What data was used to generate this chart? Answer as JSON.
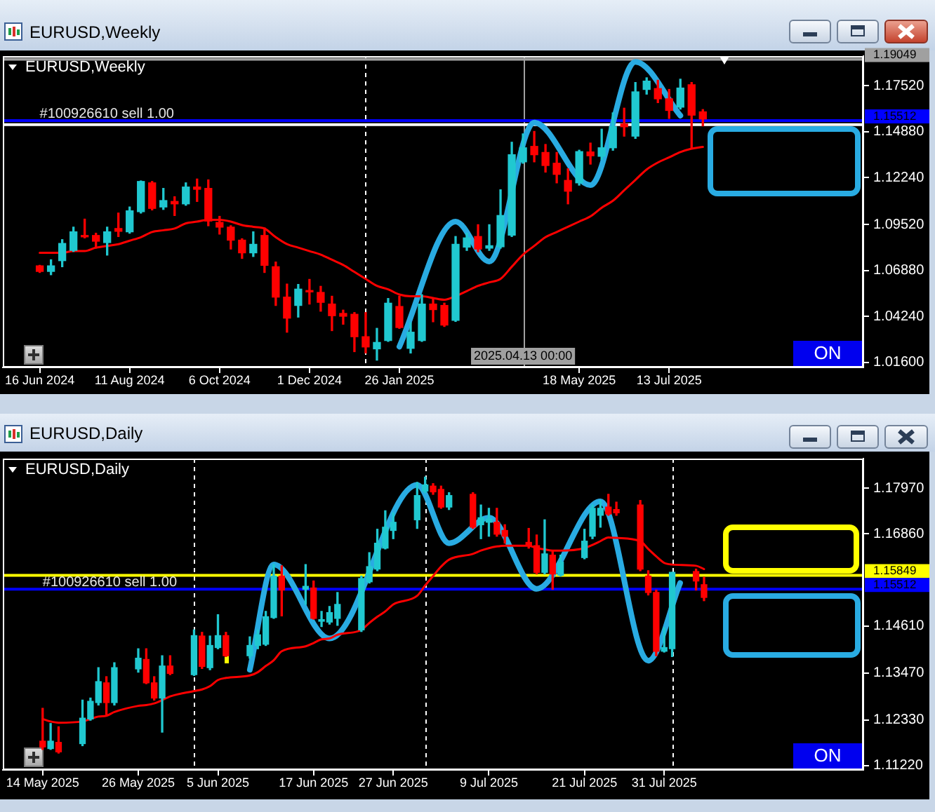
{
  "chart_data": [
    {
      "type": "candlestick",
      "title": "EURUSD,Weekly",
      "x": [
        "2024-06-16",
        "2024-06-23",
        "2024-06-30",
        "2024-07-07",
        "2024-07-14",
        "2024-07-21",
        "2024-07-28",
        "2024-08-04",
        "2024-08-11",
        "2024-08-18",
        "2024-08-25",
        "2024-09-01",
        "2024-09-08",
        "2024-09-15",
        "2024-09-22",
        "2024-09-29",
        "2024-10-06",
        "2024-10-13",
        "2024-10-20",
        "2024-10-27",
        "2024-11-03",
        "2024-11-10",
        "2024-11-17",
        "2024-11-24",
        "2024-12-01",
        "2024-12-08",
        "2024-12-15",
        "2024-12-22",
        "2024-12-29",
        "2025-01-05",
        "2025-01-12",
        "2025-01-19",
        "2025-01-26",
        "2025-02-02",
        "2025-02-09",
        "2025-02-16",
        "2025-02-23",
        "2025-03-02",
        "2025-03-09",
        "2025-03-16",
        "2025-03-23",
        "2025-03-30",
        "2025-04-06",
        "2025-04-13",
        "2025-04-20",
        "2025-04-27",
        "2025-05-04",
        "2025-05-11",
        "2025-05-18",
        "2025-05-25",
        "2025-06-01",
        "2025-06-08",
        "2025-06-15",
        "2025-06-22",
        "2025-06-29",
        "2025-07-06",
        "2025-07-13",
        "2025-07-20",
        "2025-07-27",
        "2025-08-03"
      ],
      "ohlc": [
        [
          1.0715,
          1.0718,
          1.0677,
          1.0683
        ],
        [
          1.0683,
          1.075,
          1.0664,
          1.0715
        ],
        [
          1.0745,
          1.0866,
          1.071,
          1.0844
        ],
        [
          1.0804,
          1.0938,
          1.0798,
          1.0911
        ],
        [
          1.0887,
          1.0984,
          1.0876,
          1.0882
        ],
        [
          1.089,
          1.0903,
          1.0817,
          1.0857
        ],
        [
          1.0849,
          1.0938,
          1.0777,
          1.0911
        ],
        [
          1.093,
          1.1019,
          1.0884,
          1.0914
        ],
        [
          1.0911,
          1.1054,
          1.0903,
          1.1032
        ],
        [
          1.1027,
          1.1204,
          1.1019,
          1.1201
        ],
        [
          1.1193,
          1.1201,
          1.1037,
          1.1046
        ],
        [
          1.1054,
          1.1161,
          1.104,
          1.1091
        ],
        [
          1.1086,
          1.1113,
          1.1005,
          1.1072
        ],
        [
          1.1072,
          1.1193,
          1.1064,
          1.1169
        ],
        [
          1.1169,
          1.1215,
          1.1086,
          1.1156
        ],
        [
          1.1161,
          1.121,
          1.0946,
          1.0973
        ],
        [
          1.0965,
          1.1,
          1.0898,
          1.0938
        ],
        [
          1.0938,
          1.0946,
          1.0812,
          1.0863
        ],
        [
          1.0863,
          1.0871,
          1.0758,
          1.079
        ],
        [
          1.079,
          1.0911,
          1.0769,
          1.0839
        ],
        [
          1.089,
          1.0933,
          1.0677,
          1.0718
        ],
        [
          1.071,
          1.0737,
          1.0487,
          1.0535
        ],
        [
          1.0535,
          1.061,
          1.0333,
          1.0414
        ],
        [
          1.0487,
          1.0608,
          1.042,
          1.0581
        ],
        [
          1.0573,
          1.0637,
          1.0495,
          1.0565
        ],
        [
          1.0562,
          1.0597,
          1.0454,
          1.0505
        ],
        [
          1.0495,
          1.054,
          1.0342,
          1.0428
        ],
        [
          1.0441,
          1.046,
          1.0379,
          1.0425
        ],
        [
          1.0436,
          1.0446,
          1.0221,
          1.0307
        ],
        [
          1.0307,
          1.0446,
          1.0213,
          1.0248
        ],
        [
          1.0237,
          1.0355,
          1.0172,
          1.0274
        ],
        [
          1.0285,
          1.0527,
          1.028,
          1.05
        ],
        [
          1.0481,
          1.054,
          1.0355,
          1.036
        ],
        [
          1.024,
          1.0387,
          1.0213,
          1.0333
        ],
        [
          1.0285,
          1.0549,
          1.028,
          1.0495
        ],
        [
          1.0495,
          1.0527,
          1.0393,
          1.0463
        ],
        [
          1.0487,
          1.05,
          1.0366,
          1.0374
        ],
        [
          1.0401,
          1.0884,
          1.0395,
          1.0839
        ],
        [
          1.0823,
          1.0903,
          1.0804,
          1.0876
        ],
        [
          1.0884,
          1.0952,
          1.0796,
          1.0812
        ],
        [
          1.0817,
          1.0952,
          1.0804,
          1.0831
        ],
        [
          1.0825,
          1.1153,
          1.0817,
          1.1005
        ],
        [
          1.0892,
          1.1427,
          1.0884,
          1.1355
        ],
        [
          1.1314,
          1.1475,
          1.1306,
          1.1395
        ],
        [
          1.1403,
          1.1489,
          1.1314,
          1.1355
        ],
        [
          1.1368,
          1.1414,
          1.1255,
          1.1293
        ],
        [
          1.1306,
          1.1368,
          1.1193,
          1.1242
        ],
        [
          1.1207,
          1.1274,
          1.1072,
          1.1145
        ],
        [
          1.1193,
          1.1381,
          1.118,
          1.1373
        ],
        [
          1.1371,
          1.1422,
          1.1301,
          1.1349
        ],
        [
          1.1346,
          1.1502,
          1.1328,
          1.1395
        ],
        [
          1.1395,
          1.1596,
          1.1381,
          1.1516
        ],
        [
          1.1532,
          1.1623,
          1.1462,
          1.1516
        ],
        [
          1.1462,
          1.1771,
          1.1449,
          1.1717
        ],
        [
          1.1731,
          1.1798,
          1.1704,
          1.1779
        ],
        [
          1.1736,
          1.1784,
          1.1655,
          1.1677
        ],
        [
          1.1677,
          1.1731,
          1.1564,
          1.161
        ],
        [
          1.1629,
          1.179,
          1.1618,
          1.1739
        ],
        [
          1.1758,
          1.1771,
          1.1395,
          1.1583
        ],
        [
          1.1602,
          1.1615,
          1.1521,
          1.1561
        ]
      ],
      "colors": [
        "#ff0000",
        "#20c8d0",
        "#20c8d0",
        "#20c8d0",
        "#ff0000",
        "#ff0000",
        "#20c8d0",
        "#ff0000",
        "#20c8d0",
        "#20c8d0",
        "#ff0000",
        "#20c8d0",
        "#ff0000",
        "#20c8d0",
        "#ff0000",
        "#ff0000",
        "#ff0000",
        "#ff0000",
        "#ff0000",
        "#20c8d0",
        "#ff0000",
        "#ff0000",
        "#ff0000",
        "#20c8d0",
        "#ff0000",
        "#ff0000",
        "#ff0000",
        "#ff0000",
        "#ff0000",
        "#ff0000",
        "#20c8d0",
        "#20c8d0",
        "#ff0000",
        "#20c8d0",
        "#20c8d0",
        "#ff0000",
        "#ff0000",
        "#20c8d0",
        "#20c8d0",
        "#ff0000",
        "#20c8d0",
        "#20c8d0",
        "#20c8d0",
        "#20c8d0",
        "#ff0000",
        "#ff0000",
        "#ff0000",
        "#ff0000",
        "#20c8d0",
        "#ff0000",
        "#20c8d0",
        "#20c8d0",
        "#ff0000",
        "#20c8d0",
        "#20c8d0",
        "#ff0000",
        "#ff0000",
        "#20c8d0",
        "#ff0000",
        "#ff0000"
      ],
      "series": [
        {
          "type": "line",
          "color": "#ff0000",
          "values": [
            1.079,
            1.079,
            1.079,
            1.08,
            1.08,
            1.082,
            1.083,
            1.084,
            1.086,
            1.088,
            1.091,
            1.092,
            1.093,
            1.096,
            1.097,
            1.098,
            1.098,
            1.097,
            1.095,
            1.094,
            1.093,
            1.088,
            1.084,
            1.082,
            1.08,
            1.078,
            1.075,
            1.072,
            1.068,
            1.064,
            1.06,
            1.058,
            1.055,
            1.054,
            1.054,
            1.053,
            1.052,
            1.054,
            1.057,
            1.06,
            1.062,
            1.064,
            1.071,
            1.078,
            1.083,
            1.088,
            1.091,
            1.094,
            1.097,
            1.1,
            1.105,
            1.109,
            1.115,
            1.121,
            1.127,
            1.131,
            1.134,
            1.137,
            1.139,
            1.14
          ]
        },
        {
          "type": "line",
          "color": "#29abe2",
          "x": [
            "2025-01-26",
            "2025-03-02",
            "2025-03-23",
            "2025-04-20",
            "2025-05-25",
            "2025-06-22",
            "2025-07-20"
          ],
          "values": [
            1.025,
            1.097,
            1.074,
            1.154,
            1.118,
            1.189,
            1.158
          ]
        }
      ],
      "xlim": [
        "2024-05-24",
        "2025-11-11"
      ],
      "ylim": [
        1.013,
        1.1923
      ],
      "yticks": [
        {
          "value": 1.016,
          "label": "1.01600"
        },
        {
          "value": 1.0424,
          "label": "1.04240"
        },
        {
          "value": 1.0688,
          "label": "1.06880"
        },
        {
          "value": 1.0952,
          "label": "1.09520"
        },
        {
          "value": 1.1224,
          "label": "1.12240"
        },
        {
          "value": 1.1488,
          "label": "1.14880"
        },
        {
          "value": 1.1752,
          "label": "1.17520"
        }
      ],
      "xticks": [
        {
          "value": "2024-06-16",
          "label": "16 Jun 2024"
        },
        {
          "value": "2024-08-11",
          "label": "11 Aug 2024"
        },
        {
          "value": "2024-10-06",
          "label": "6 Oct 2024"
        },
        {
          "value": "2024-12-01",
          "label": "1 Dec 2024"
        },
        {
          "value": "2025-01-26",
          "label": "26 Jan 2025"
        },
        {
          "value": "2025-05-18",
          "label": "18 May 2025"
        },
        {
          "value": "2025-07-13",
          "label": "13 Jul 2025"
        }
      ],
      "ref_lines": [
        {
          "axis": "x",
          "value": "2025-01-05",
          "color": "#ffffff",
          "line_style": "dashed"
        },
        {
          "axis": "x",
          "value": "2025-04-13",
          "label": "2025.04.13 00:00",
          "color": "#a0a0a0"
        },
        {
          "axis": "y",
          "value": 1.19049,
          "label": "1.19049",
          "color": "#a0a0a0"
        },
        {
          "axis": "y",
          "value": 1.15512,
          "label": "1.15512",
          "color": "#0000ff"
        },
        {
          "axis": "y",
          "value": 1.1528,
          "color": "#ffffff"
        }
      ],
      "annotations": [
        "ON",
        {
          "text": "#100926610 sell 1.00",
          "x": "2024-06-16",
          "y": 1.15512
        }
      ]
    },
    {
      "type": "candlestick",
      "title": "EURUSD,Daily",
      "x": [
        "2025-05-14",
        "2025-05-15",
        "2025-05-16",
        "2025-05-19",
        "2025-05-20",
        "2025-05-21",
        "2025-05-22",
        "2025-05-23",
        "2025-05-26",
        "2025-05-27",
        "2025-05-28",
        "2025-05-29",
        "2025-05-30",
        "2025-06-02",
        "2025-06-03",
        "2025-06-04",
        "2025-06-05",
        "2025-06-06",
        "2025-06-09",
        "2025-06-10",
        "2025-06-11",
        "2025-06-12",
        "2025-06-13",
        "2025-06-16",
        "2025-06-17",
        "2025-06-18",
        "2025-06-19",
        "2025-06-20",
        "2025-06-23",
        "2025-06-24",
        "2025-06-25",
        "2025-06-26",
        "2025-06-27",
        "2025-06-30",
        "2025-07-01",
        "2025-07-02",
        "2025-07-03",
        "2025-07-04",
        "2025-07-07",
        "2025-07-08",
        "2025-07-09",
        "2025-07-10",
        "2025-07-11",
        "2025-07-14",
        "2025-07-15",
        "2025-07-16",
        "2025-07-17",
        "2025-07-18",
        "2025-07-21",
        "2025-07-22",
        "2025-07-23",
        "2025-07-24",
        "2025-07-25",
        "2025-07-28",
        "2025-07-29",
        "2025-07-30",
        "2025-07-31",
        "2025-08-01",
        "2025-08-04",
        "2025-08-05"
      ],
      "ohlc": [
        [
          1.1181,
          1.1261,
          1.1161,
          1.1167
        ],
        [
          1.1163,
          1.1224,
          1.1161,
          1.1181
        ],
        [
          1.1178,
          1.1216,
          1.1152,
          1.1155
        ],
        [
          1.1175,
          1.1281,
          1.117,
          1.1237
        ],
        [
          1.1235,
          1.1286,
          1.1232,
          1.1278
        ],
        [
          1.1275,
          1.136,
          1.1269,
          1.1326
        ],
        [
          1.1323,
          1.1338,
          1.1246,
          1.1275
        ],
        [
          1.1275,
          1.1372,
          1.1269,
          1.136
        ],
        [
          1.1357,
          1.1406,
          1.1349,
          1.1383
        ],
        [
          1.138,
          1.1406,
          1.1321,
          1.1323
        ],
        [
          1.1323,
          1.1338,
          1.1281,
          1.1286
        ],
        [
          1.1286,
          1.1389,
          1.1203,
          1.1364
        ],
        [
          1.1364,
          1.1389,
          1.1343,
          1.1346
        ],
        [
          1.1343,
          1.1452,
          1.1341,
          1.1438
        ],
        [
          1.1437,
          1.1446,
          1.1358,
          1.1363
        ],
        [
          1.136,
          1.1437,
          1.1355,
          1.1414
        ],
        [
          1.1409,
          1.1489,
          1.1406,
          1.1438
        ],
        [
          1.1438,
          1.1446,
          1.1387,
          1.1389
        ],
        [
          1.1389,
          1.1435,
          1.1383,
          1.1414
        ],
        [
          1.1414,
          1.1452,
          1.1406,
          1.144
        ],
        [
          1.1417,
          1.1497,
          1.1414,
          1.1484
        ],
        [
          1.1482,
          1.1611,
          1.148,
          1.1583
        ],
        [
          1.1583,
          1.1608,
          1.1486,
          1.1549
        ],
        [
          1.1551,
          1.1611,
          1.1514,
          1.1558
        ],
        [
          1.1554,
          1.1571,
          1.1478,
          1.148
        ],
        [
          1.1473,
          1.1497,
          1.146,
          1.1477
        ],
        [
          1.1471,
          1.1509,
          1.1466,
          1.1494
        ],
        [
          1.148,
          1.1543,
          1.1463,
          1.1514
        ],
        [
          1.1452,
          1.1583,
          1.1448,
          1.1577
        ],
        [
          1.1569,
          1.164,
          1.1566,
          1.1606
        ],
        [
          1.16,
          1.1697,
          1.1596,
          1.1663
        ],
        [
          1.1651,
          1.1742,
          1.1649,
          1.1702
        ],
        [
          1.1694,
          1.1737,
          1.1674,
          1.1714
        ],
        [
          1.172,
          1.1811,
          1.1699,
          1.1779
        ],
        [
          1.179,
          1.1824,
          1.1786,
          1.1805
        ],
        [
          1.1802,
          1.1808,
          1.1782,
          1.1788
        ],
        [
          1.1794,
          1.1802,
          1.1748,
          1.1751
        ],
        [
          1.1751,
          1.1786,
          1.1745,
          1.1779
        ],
        [
          1.1782,
          1.1786,
          1.1699,
          1.1702
        ],
        [
          1.1708,
          1.1756,
          1.1674,
          1.1725
        ],
        [
          1.1714,
          1.1748,
          1.168,
          1.1722
        ],
        [
          1.1714,
          1.1748,
          1.168,
          1.1685
        ],
        [
          1.1694,
          1.1708,
          1.1663,
          1.168
        ],
        [
          1.1665,
          1.1699,
          1.1651,
          1.1657
        ],
        [
          1.1657,
          1.1683,
          1.1588,
          1.1592
        ],
        [
          1.1592,
          1.172,
          1.1588,
          1.1637
        ],
        [
          1.1634,
          1.1645,
          1.1551,
          1.1588
        ],
        [
          1.1585,
          1.1634,
          1.1583,
          1.1617
        ],
        [
          1.1628,
          1.1697,
          1.1625,
          1.1668
        ],
        [
          1.168,
          1.1756,
          1.1674,
          1.1748
        ],
        [
          1.1731,
          1.1767,
          1.1702,
          1.1748
        ],
        [
          1.1751,
          1.1782,
          1.1731,
          1.1734
        ],
        [
          1.1745,
          1.1763,
          1.1731,
          1.1737
        ],
        [
          1.1756,
          1.1767,
          1.1596,
          1.16
        ],
        [
          1.1583,
          1.1596,
          1.1537,
          1.1543
        ],
        [
          1.1543,
          1.1549,
          1.1389,
          1.14
        ],
        [
          1.14,
          1.1457,
          1.1398,
          1.1409
        ],
        [
          1.1406,
          1.1592,
          1.1387,
          1.1592
        ],
        [
          1.1594,
          1.16,
          1.1549,
          1.1571
        ],
        [
          1.1562,
          1.158,
          1.1523,
          1.1531
        ]
      ],
      "colors": [
        "#ff0000",
        "#20c8d0",
        "#ff0000",
        "#20c8d0",
        "#20c8d0",
        "#20c8d0",
        "#ff0000",
        "#20c8d0",
        "#20c8d0",
        "#ff0000",
        "#ff0000",
        "#20c8d0",
        "#ff0000",
        "#20c8d0",
        "#ff0000",
        "#20c8d0",
        "#20c8d0",
        "#ff0000",
        "#20c8d0",
        "#20c8d0",
        "#20c8d0",
        "#20c8d0",
        "#ff0000",
        "#20c8d0",
        "#ff0000",
        "#20c8d0",
        "#20c8d0",
        "#20c8d0",
        "#20c8d0",
        "#20c8d0",
        "#20c8d0",
        "#20c8d0",
        "#20c8d0",
        "#20c8d0",
        "#20c8d0",
        "#ff0000",
        "#ff0000",
        "#20c8d0",
        "#ff0000",
        "#20c8d0",
        "#20c8d0",
        "#ff0000",
        "#ff0000",
        "#ff0000",
        "#ff0000",
        "#20c8d0",
        "#ff0000",
        "#20c8d0",
        "#20c8d0",
        "#20c8d0",
        "#20c8d0",
        "#ff0000",
        "#ff0000",
        "#ff0000",
        "#ff0000",
        "#ff0000",
        "#20c8d0",
        "#20c8d0",
        "#ff0000",
        "#ff0000"
      ],
      "series": [
        {
          "type": "line",
          "color": "#ff0000",
          "values": [
            1.1235,
            1.1229,
            1.1226,
            1.1229,
            1.1235,
            1.1241,
            1.1243,
            1.1252,
            1.1267,
            1.1269,
            1.1273,
            1.1281,
            1.129,
            1.1303,
            1.1307,
            1.1315,
            1.133,
            1.1335,
            1.1341,
            1.1349,
            1.1364,
            1.1378,
            1.14,
            1.1412,
            1.142,
            1.1429,
            1.1431,
            1.144,
            1.1452,
            1.1469,
            1.1484,
            1.1497,
            1.1514,
            1.1535,
            1.156,
            1.1583,
            1.1606,
            1.1623,
            1.1637,
            1.1645,
            1.1651,
            1.1655,
            1.1657,
            1.1657,
            1.1651,
            1.1648,
            1.1645,
            1.1645,
            1.1651,
            1.1659,
            1.1668,
            1.1677,
            1.1676,
            1.1668,
            1.1649,
            1.1631,
            1.1615,
            1.1611,
            1.1608,
            1.16
          ]
        },
        {
          "type": "line",
          "color": "#29abe2",
          "x": [
            "2025-06-09",
            "2025-06-12",
            "2025-06-19",
            "2025-06-30",
            "2025-07-04",
            "2025-07-09",
            "2025-07-15",
            "2025-07-23",
            "2025-07-29",
            "2025-08-02"
          ],
          "values": [
            1.1355,
            1.1611,
            1.1431,
            1.1805,
            1.1663,
            1.1725,
            1.1552,
            1.1765,
            1.1377,
            1.1566
          ]
        }
      ],
      "xlim": [
        "2025-05-09",
        "2025-08-25"
      ],
      "ylim": [
        1.1111,
        1.1869
      ],
      "yticks": [
        {
          "value": 1.1122,
          "label": "1.11220"
        },
        {
          "value": 1.1233,
          "label": "1.12330"
        },
        {
          "value": 1.1347,
          "label": "1.13470"
        },
        {
          "value": 1.1461,
          "label": "1.14610"
        },
        {
          "value": 1.1686,
          "label": "1.16860"
        },
        {
          "value": 1.1797,
          "label": "1.17970"
        }
      ],
      "xticks": [
        {
          "value": "2025-05-14",
          "label": "14 May 2025"
        },
        {
          "value": "2025-05-26",
          "label": "26 May 2025"
        },
        {
          "value": "2025-06-05",
          "label": "5 Jun 2025"
        },
        {
          "value": "2025-06-17",
          "label": "17 Jun 2025"
        },
        {
          "value": "2025-06-27",
          "label": "27 Jun 2025"
        },
        {
          "value": "2025-07-09",
          "label": "9 Jul 2025"
        },
        {
          "value": "2025-07-21",
          "label": "21 Jul 2025"
        },
        {
          "value": "2025-07-31",
          "label": "31 Jul 2025"
        }
      ],
      "ref_lines": [
        {
          "axis": "x",
          "value": "2025-06-02",
          "color": "#ffffff",
          "line_style": "dashed"
        },
        {
          "axis": "x",
          "value": "2025-07-01",
          "color": "#ffffff",
          "line_style": "dashed"
        },
        {
          "axis": "x",
          "value": "2025-08-01",
          "color": "#ffffff",
          "line_style": "dashed"
        },
        {
          "axis": "y",
          "value": 1.15849,
          "label": "1.15849",
          "color": "#ffff00"
        },
        {
          "axis": "y",
          "value": 1.15512,
          "label": "1.15512",
          "color": "#0000ff"
        }
      ],
      "annotations": [
        "ON",
        {
          "text": "#100926610 sell 1.00",
          "x": "2025-05-14",
          "y": 1.15512
        }
      ]
    }
  ]
}
